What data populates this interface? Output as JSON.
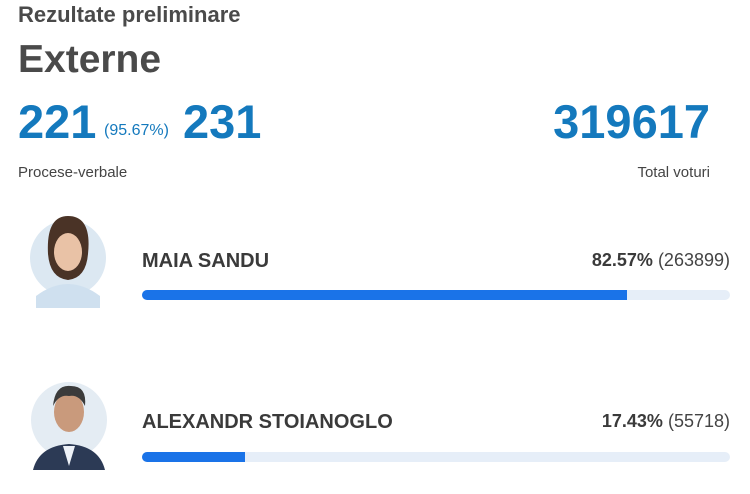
{
  "header": {
    "subtitle": "Rezultate preliminare",
    "title": "Externe"
  },
  "stats": {
    "counted": 221,
    "counted_percent": "(95.67%)",
    "total_reports": 231,
    "reports_label": "Procese-verbale",
    "total_votes": 319617,
    "votes_label": "Total voturi"
  },
  "candidates": [
    {
      "name": "MAIA SANDU",
      "percent": {
        "value": 82.57,
        "label": "82.57%"
      },
      "votes": {
        "value": 263899,
        "label": "(263899)"
      }
    },
    {
      "name": "ALEXANDR STOIANOGLO",
      "percent": {
        "value": 17.43,
        "label": "17.43%"
      },
      "votes": {
        "value": 55718,
        "label": "(55718)"
      }
    }
  ]
}
